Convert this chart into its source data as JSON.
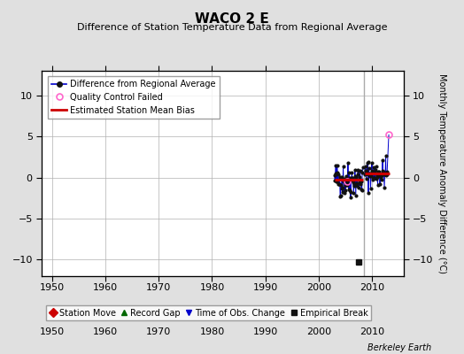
{
  "title": "WACO 2 E",
  "subtitle": "Difference of Station Temperature Data from Regional Average",
  "ylabel": "Monthly Temperature Anomaly Difference (°C)",
  "xlim": [
    1948,
    2016
  ],
  "ylim": [
    -12,
    13
  ],
  "yticks": [
    -10,
    -5,
    0,
    5,
    10
  ],
  "xticks": [
    1950,
    1960,
    1970,
    1980,
    1990,
    2000,
    2010
  ],
  "bg_color": "#e0e0e0",
  "plot_bg_color": "#ffffff",
  "grid_color": "#b0b0b0",
  "station_move_color": "#cc0000",
  "record_gap_color": "#006600",
  "obs_change_color": "#0000cc",
  "empirical_break_color": "#111111",
  "data_line_color": "#0000cc",
  "data_marker_color": "#111111",
  "bias_color": "#cc0000",
  "qc_fail_color": "#ff66cc",
  "vertical_line_x": 2008.5,
  "vertical_line_color": "#aaaaaa",
  "segment1_x_start": 2003.0,
  "segment1_x_end": 2008.3,
  "segment1_bias": -0.25,
  "segment2_x_start": 2008.7,
  "segment2_x_end": 2014.2,
  "segment2_bias": 0.45,
  "empirical_break_x": 2007.5,
  "empirical_break_y": -10.3,
  "qc_fail_x": 2013.2,
  "qc_fail_y": 5.2,
  "qc_fail2_x": 2005.4,
  "qc_fail2_y": -0.5,
  "watermark": "Berkeley Earth",
  "seed": 42
}
